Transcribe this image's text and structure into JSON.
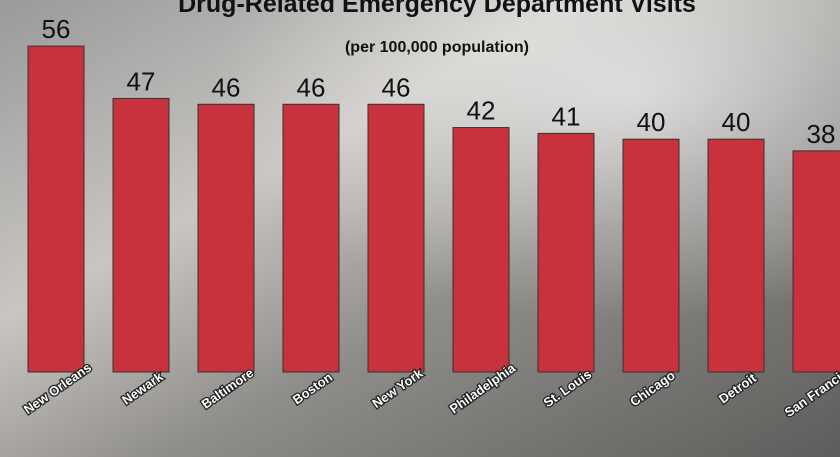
{
  "chart_data": {
    "type": "bar",
    "title": "Drug-Related Emergency Department Visits",
    "subtitle": "(per 100,000 population)",
    "categories": [
      "New Orleans",
      "Newark",
      "Baltimore",
      "Boston",
      "New York",
      "Philadelphia",
      "St. Louis",
      "Chicago",
      "Detroit",
      "San Francisco"
    ],
    "values": [
      56,
      47,
      46,
      46,
      46,
      42,
      41,
      40,
      40,
      38
    ],
    "color": "#c8323c"
  }
}
